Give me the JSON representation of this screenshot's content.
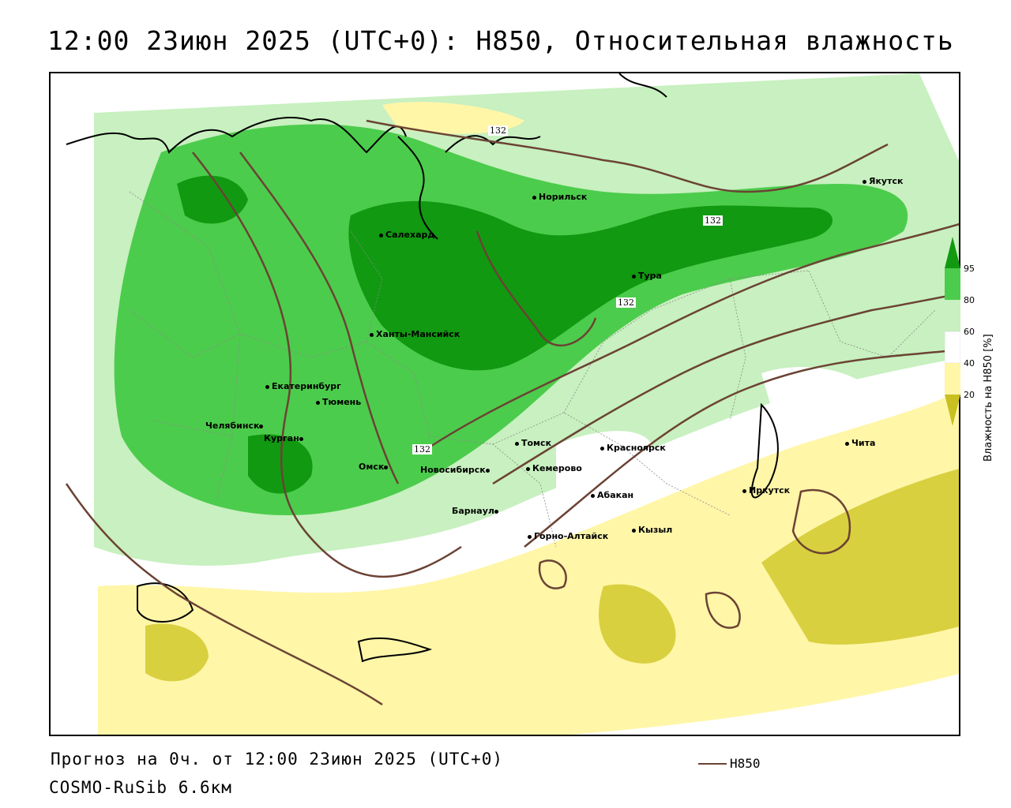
{
  "title": "12:00 23июн 2025 (UTC+0): H850, Относительная влажность",
  "footer": {
    "forecast": "Прогноз на 0ч. от 12:00 23июн 2025 (UTC+0)",
    "model": "COSMO-RuSib 6.6км"
  },
  "legend": {
    "line_label": "H850",
    "line_color": "#6b4334",
    "colorbar_label": "Влажность на H850 [%]",
    "ticks": [
      "20",
      "40",
      "60",
      "80",
      "95"
    ],
    "colors": {
      "very_dry": "#c8c020",
      "dry": "#fff6a8",
      "mid": "#ffffff",
      "moist": "#c8f0c0",
      "wet": "#4ccc4c",
      "very_wet": "#119911"
    }
  },
  "contour_labels": [
    "132",
    "132",
    "132",
    "132"
  ],
  "cities": [
    {
      "name": "Якутск"
    },
    {
      "name": "Норильск"
    },
    {
      "name": "Салехард"
    },
    {
      "name": "Тура"
    },
    {
      "name": "Ханты-Мансийск"
    },
    {
      "name": "Екатеринбург"
    },
    {
      "name": "Тюмень"
    },
    {
      "name": "Челябинск"
    },
    {
      "name": "Курган"
    },
    {
      "name": "Омск"
    },
    {
      "name": "Новосибирск"
    },
    {
      "name": "Томск"
    },
    {
      "name": "Кемерово"
    },
    {
      "name": "Красноярск"
    },
    {
      "name": "Абакан"
    },
    {
      "name": "Барнаул"
    },
    {
      "name": "Горно-Алтайск"
    },
    {
      "name": "Кызыл"
    },
    {
      "name": "Иркутск"
    },
    {
      "name": "Чита"
    }
  ]
}
